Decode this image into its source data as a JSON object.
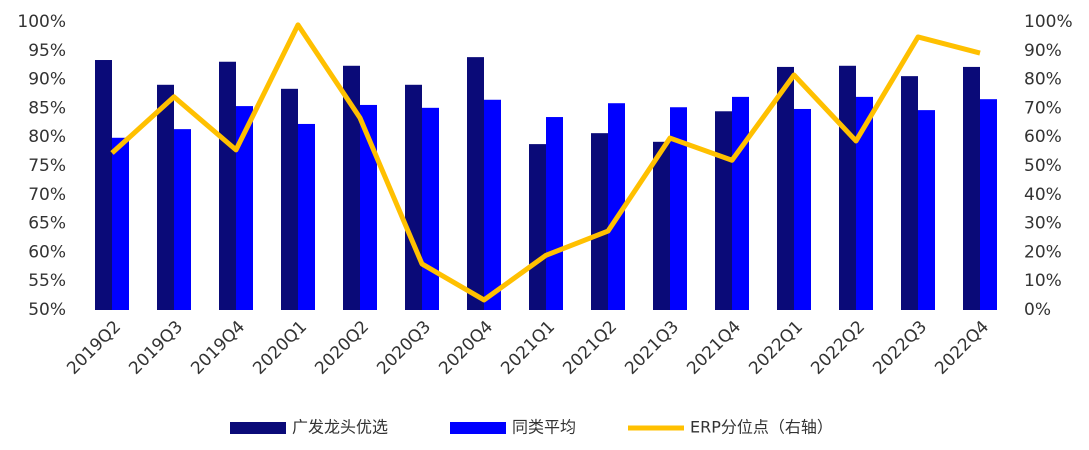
{
  "chart_data": {
    "type": "bar_line",
    "categories": [
      "2019Q2",
      "2019Q3",
      "2019Q4",
      "2020Q1",
      "2020Q2",
      "2020Q3",
      "2020Q4",
      "2021Q1",
      "2021Q2",
      "2021Q3",
      "2021Q4",
      "2022Q1",
      "2022Q2",
      "2022Q3",
      "2022Q4"
    ],
    "series": [
      {
        "name": "广发龙头优选",
        "color": "#0a0a78",
        "type": "bar",
        "values": [
          93.4,
          89.1,
          93.1,
          88.4,
          92.4,
          89.1,
          93.9,
          78.8,
          80.7,
          79.2,
          84.5,
          92.2,
          92.4,
          90.6,
          92.2
        ]
      },
      {
        "name": "同类平均",
        "color": "#0000ff",
        "type": "bar",
        "values": [
          79.9,
          81.4,
          85.4,
          82.3,
          85.6,
          85.1,
          86.5,
          83.5,
          85.9,
          85.2,
          87.0,
          84.9,
          87.0,
          84.7,
          86.6
        ]
      },
      {
        "name": "ERP分位点（右轴）",
        "color": "#ffc000",
        "type": "line",
        "axis": "y2",
        "values": [
          54.5,
          74,
          55.6,
          99,
          66.7,
          16,
          3.5,
          19,
          27.4,
          59.7,
          52,
          81.6,
          58.7,
          94.8,
          89.2
        ]
      }
    ],
    "ylim": [
      50,
      100
    ],
    "yticks": [
      {
        "value": 50,
        "label": "50%"
      },
      {
        "value": 55,
        "label": "55%"
      },
      {
        "value": 60,
        "label": "60%"
      },
      {
        "value": 65,
        "label": "65%"
      },
      {
        "value": 70,
        "label": "70%"
      },
      {
        "value": 75,
        "label": "75%"
      },
      {
        "value": 80,
        "label": "80%"
      },
      {
        "value": 85,
        "label": "85%"
      },
      {
        "value": 90,
        "label": "90%"
      },
      {
        "value": 95,
        "label": "95%"
      },
      {
        "value": 100,
        "label": "100%"
      }
    ],
    "y2lim": [
      0,
      100
    ],
    "y2ticks": [
      {
        "value": 0,
        "label": "0%"
      },
      {
        "value": 10,
        "label": "10%"
      },
      {
        "value": 20,
        "label": "20%"
      },
      {
        "value": 30,
        "label": "30%"
      },
      {
        "value": 40,
        "label": "40%"
      },
      {
        "value": 50,
        "label": "50%"
      },
      {
        "value": 60,
        "label": "60%"
      },
      {
        "value": 70,
        "label": "70%"
      },
      {
        "value": 80,
        "label": "80%"
      },
      {
        "value": 90,
        "label": "90%"
      },
      {
        "value": 100,
        "label": "100%"
      }
    ],
    "legend": "bottom"
  }
}
